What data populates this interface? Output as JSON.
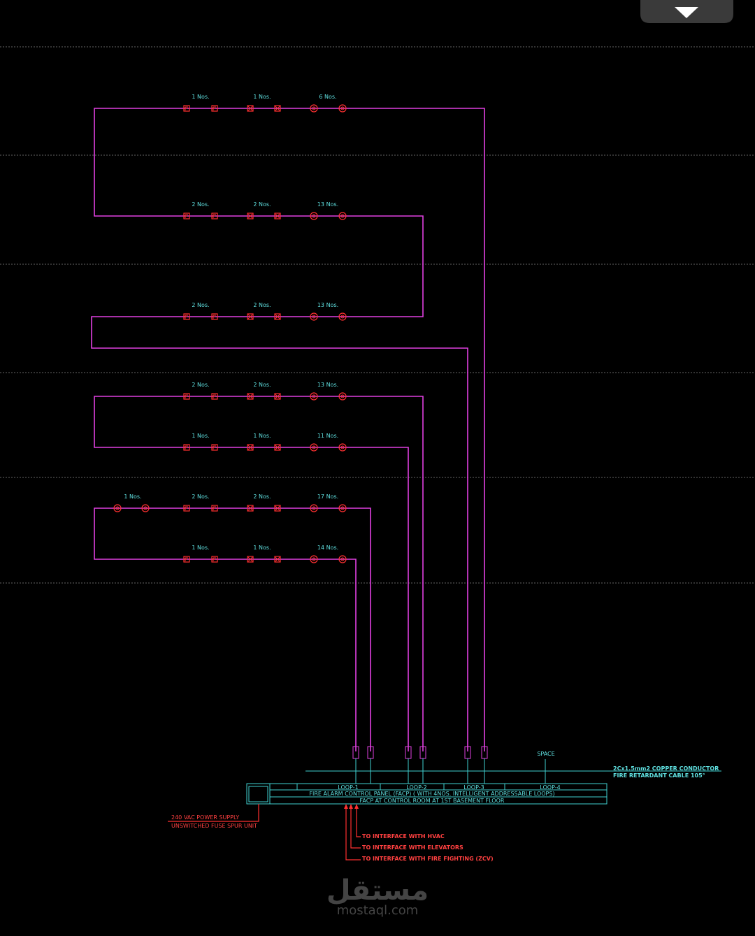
{
  "rows": [
    {
      "labels": [
        "1 Nos.",
        "1 Nos.",
        "6 Nos."
      ]
    },
    {
      "labels": [
        "2 Nos.",
        "2 Nos.",
        "13 Nos."
      ]
    },
    {
      "labels": [
        "2 Nos.",
        "2 Nos.",
        "13 Nos."
      ]
    },
    {
      "labels": [
        "2 Nos.",
        "2 Nos.",
        "13 Nos."
      ]
    },
    {
      "labels": [
        "1 Nos.",
        "1 Nos.",
        "11 Nos."
      ]
    },
    {
      "labels": [
        "1 Nos.",
        "2 Nos.",
        "2 Nos.",
        "17 Nos."
      ]
    },
    {
      "labels": [
        "1 Nos.",
        "1 Nos.",
        "14 Nos."
      ]
    }
  ],
  "panel": {
    "spare": "SPACE",
    "cable": [
      "2Cx1.5mm2 COPPER CONDUCTOR",
      "FIRE RETARDANT CABLE 105°"
    ],
    "loops": [
      "LOOP-1",
      "LOOP-2",
      "LOOP-3",
      "LOOP-4"
    ],
    "title": "FIRE ALARM CONTROL PANEL (FACP) ( WITH 4NOS. INTELLIGENT ADDRESSABLE LOOPS)",
    "location": "FACP AT CONTROL ROOM AT 1ST BASEMENT FLOOR",
    "power": [
      "240 VAC POWER SUPPLY",
      "UNSWITCHED FUSE SPUR UNIT"
    ],
    "interfaces": [
      "TO INTERFACE WITH HVAC",
      "TO INTERFACE WITH ELEVATORS",
      "TO INTERFACE WITH FIRE FIGHTING (ZCV)"
    ]
  },
  "watermark": {
    "arabic": "مستقل",
    "url": "mostaql.com"
  }
}
